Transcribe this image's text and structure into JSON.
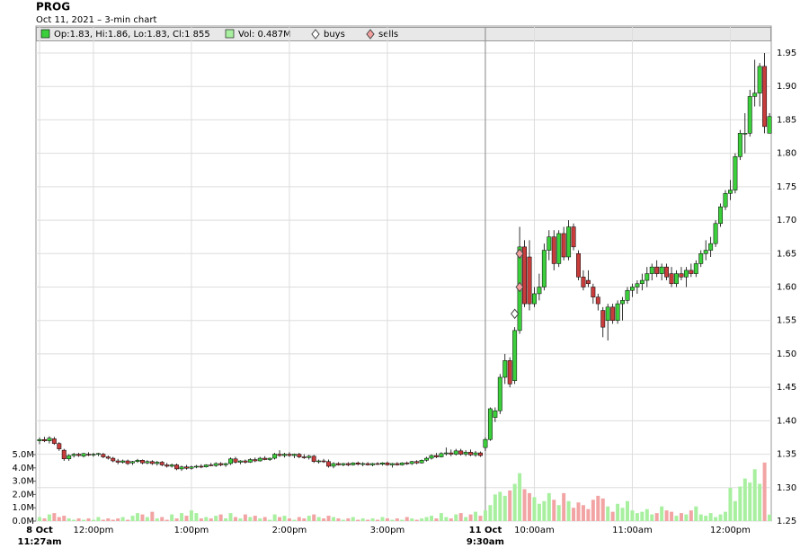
{
  "chart_data": {
    "type": "candlestick",
    "title": "PROG",
    "subtitle": "Oct 11, 2021 – 3-min chart",
    "legend": {
      "ohlc_text": "Op:1.83, Hi:1.86, Lo:1.83, Cl:1.855",
      "volume_text": "Vol: 0.487M",
      "buys": "buys",
      "sells": "sells"
    },
    "up_color": "#3ccf3c",
    "down_color": "#c83c3c",
    "volume_up_color": "#a8f0a0",
    "volume_down_color": "#f2a4a4",
    "grid": true,
    "categories": [
      "11:27am",
      null,
      null,
      null,
      null,
      null,
      null,
      null,
      null,
      null,
      null,
      "12:00pm",
      null,
      null,
      null,
      null,
      null,
      null,
      null,
      null,
      null,
      null,
      null,
      null,
      null,
      null,
      null,
      null,
      null,
      null,
      null,
      "1:00pm",
      null,
      null,
      null,
      null,
      null,
      null,
      null,
      null,
      null,
      null,
      null,
      null,
      null,
      null,
      null,
      null,
      null,
      null,
      null,
      "2:00pm",
      null,
      null,
      null,
      null,
      null,
      null,
      null,
      null,
      null,
      null,
      null,
      null,
      null,
      null,
      null,
      null,
      null,
      null,
      null,
      "3:00pm",
      null,
      null,
      null,
      null,
      null,
      null,
      null,
      null,
      null,
      null,
      null,
      null,
      null,
      null,
      null,
      null,
      null,
      null,
      null,
      "9:30am",
      null,
      null,
      null,
      null,
      null,
      null,
      null,
      null,
      null,
      "10:00am",
      null,
      null,
      null,
      null,
      null,
      null,
      null,
      null,
      null,
      null,
      null,
      null,
      null,
      null,
      null,
      null,
      null,
      null,
      null,
      "11:00am",
      null,
      null,
      null,
      null,
      null,
      null,
      null,
      null,
      null,
      null,
      null,
      null,
      null,
      null,
      null,
      null,
      null,
      null,
      null,
      "12:00pm",
      null,
      null,
      null,
      null,
      null,
      null,
      null,
      null
    ],
    "x_date_labels": [
      {
        "value": 0,
        "label": "8 Oct"
      },
      {
        "value": 91,
        "label": "11 Oct"
      }
    ],
    "ohlc": [
      [
        1.37,
        1.375,
        1.365,
        1.372
      ],
      [
        1.372,
        1.376,
        1.368,
        1.37
      ],
      [
        1.37,
        1.377,
        1.366,
        1.374
      ],
      [
        1.373,
        1.376,
        1.364,
        1.366
      ],
      [
        1.366,
        1.368,
        1.355,
        1.358
      ],
      [
        1.356,
        1.358,
        1.34,
        1.343
      ],
      [
        1.343,
        1.35,
        1.34,
        1.348
      ],
      [
        1.348,
        1.352,
        1.345,
        1.35
      ],
      [
        1.35,
        1.352,
        1.346,
        1.348
      ],
      [
        1.347,
        1.352,
        1.345,
        1.351
      ],
      [
        1.35,
        1.353,
        1.347,
        1.349
      ],
      [
        1.349,
        1.352,
        1.346,
        1.35
      ],
      [
        1.35,
        1.352,
        1.347,
        1.351
      ],
      [
        1.35,
        1.352,
        1.344,
        1.346
      ],
      [
        1.346,
        1.348,
        1.342,
        1.344
      ],
      [
        1.344,
        1.346,
        1.338,
        1.34
      ],
      [
        1.34,
        1.343,
        1.335,
        1.338
      ],
      [
        1.338,
        1.342,
        1.336,
        1.34
      ],
      [
        1.34,
        1.342,
        1.334,
        1.336
      ],
      [
        1.337,
        1.34,
        1.334,
        1.339
      ],
      [
        1.339,
        1.343,
        1.337,
        1.341
      ],
      [
        1.341,
        1.342,
        1.335,
        1.337
      ],
      [
        1.337,
        1.341,
        1.335,
        1.339
      ],
      [
        1.339,
        1.341,
        1.334,
        1.336
      ],
      [
        1.336,
        1.34,
        1.333,
        1.338
      ],
      [
        1.338,
        1.34,
        1.332,
        1.334
      ],
      [
        1.334,
        1.337,
        1.33,
        1.332
      ],
      [
        1.332,
        1.336,
        1.33,
        1.334
      ],
      [
        1.334,
        1.336,
        1.326,
        1.328
      ],
      [
        1.328,
        1.333,
        1.325,
        1.331
      ],
      [
        1.331,
        1.334,
        1.327,
        1.329
      ],
      [
        1.329,
        1.333,
        1.327,
        1.331
      ],
      [
        1.331,
        1.334,
        1.329,
        1.332
      ],
      [
        1.332,
        1.335,
        1.329,
        1.331
      ],
      [
        1.331,
        1.335,
        1.33,
        1.334
      ],
      [
        1.334,
        1.337,
        1.332,
        1.333
      ],
      [
        1.333,
        1.338,
        1.331,
        1.336
      ],
      [
        1.336,
        1.338,
        1.332,
        1.334
      ],
      [
        1.334,
        1.337,
        1.331,
        1.336
      ],
      [
        1.336,
        1.345,
        1.334,
        1.343
      ],
      [
        1.343,
        1.346,
        1.336,
        1.338
      ],
      [
        1.338,
        1.341,
        1.335,
        1.34
      ],
      [
        1.34,
        1.342,
        1.336,
        1.338
      ],
      [
        1.338,
        1.344,
        1.337,
        1.342
      ],
      [
        1.342,
        1.345,
        1.338,
        1.34
      ],
      [
        1.34,
        1.346,
        1.339,
        1.344
      ],
      [
        1.344,
        1.347,
        1.341,
        1.342
      ],
      [
        1.342,
        1.345,
        1.34,
        1.344
      ],
      [
        1.344,
        1.352,
        1.342,
        1.35
      ],
      [
        1.35,
        1.356,
        1.346,
        1.348
      ],
      [
        1.348,
        1.352,
        1.345,
        1.35
      ],
      [
        1.35,
        1.353,
        1.346,
        1.348
      ],
      [
        1.348,
        1.351,
        1.344,
        1.35
      ],
      [
        1.35,
        1.352,
        1.344,
        1.346
      ],
      [
        1.346,
        1.35,
        1.343,
        1.345
      ],
      [
        1.345,
        1.349,
        1.342,
        1.347
      ],
      [
        1.347,
        1.349,
        1.337,
        1.339
      ],
      [
        1.339,
        1.342,
        1.336,
        1.34
      ],
      [
        1.34,
        1.343,
        1.337,
        1.339
      ],
      [
        1.339,
        1.342,
        1.33,
        1.332
      ],
      [
        1.332,
        1.338,
        1.329,
        1.336
      ],
      [
        1.336,
        1.338,
        1.333,
        1.334
      ],
      [
        1.334,
        1.337,
        1.332,
        1.336
      ],
      [
        1.336,
        1.338,
        1.332,
        1.334
      ],
      [
        1.334,
        1.338,
        1.333,
        1.337
      ],
      [
        1.337,
        1.339,
        1.333,
        1.335
      ],
      [
        1.335,
        1.338,
        1.332,
        1.336
      ],
      [
        1.336,
        1.338,
        1.333,
        1.334
      ],
      [
        1.334,
        1.337,
        1.332,
        1.336
      ],
      [
        1.336,
        1.338,
        1.334,
        1.335
      ],
      [
        1.335,
        1.338,
        1.333,
        1.337
      ],
      [
        1.337,
        1.339,
        1.333,
        1.334
      ],
      [
        1.334,
        1.337,
        1.33,
        1.336
      ],
      [
        1.336,
        1.338,
        1.333,
        1.334
      ],
      [
        1.334,
        1.338,
        1.333,
        1.337
      ],
      [
        1.337,
        1.339,
        1.334,
        1.336
      ],
      [
        1.336,
        1.34,
        1.334,
        1.339
      ],
      [
        1.339,
        1.341,
        1.335,
        1.337
      ],
      [
        1.337,
        1.342,
        1.336,
        1.341
      ],
      [
        1.341,
        1.346,
        1.339,
        1.344
      ],
      [
        1.344,
        1.35,
        1.342,
        1.348
      ],
      [
        1.348,
        1.352,
        1.344,
        1.346
      ],
      [
        1.346,
        1.353,
        1.345,
        1.351
      ],
      [
        1.351,
        1.36,
        1.348,
        1.352
      ],
      [
        1.352,
        1.357,
        1.347,
        1.35
      ],
      [
        1.35,
        1.358,
        1.348,
        1.355
      ],
      [
        1.355,
        1.358,
        1.348,
        1.35
      ],
      [
        1.35,
        1.356,
        1.347,
        1.353
      ],
      [
        1.353,
        1.357,
        1.347,
        1.349
      ],
      [
        1.349,
        1.355,
        1.346,
        1.352
      ],
      [
        1.352,
        1.354,
        1.346,
        1.348
      ],
      [
        1.36,
        1.375,
        1.355,
        1.372
      ],
      [
        1.372,
        1.42,
        1.37,
        1.418
      ],
      [
        1.405,
        1.42,
        1.398,
        1.415
      ],
      [
        1.415,
        1.47,
        1.41,
        1.465
      ],
      [
        1.465,
        1.5,
        1.455,
        1.49
      ],
      [
        1.49,
        1.495,
        1.45,
        1.455
      ],
      [
        1.46,
        1.54,
        1.455,
        1.535
      ],
      [
        1.535,
        1.69,
        1.53,
        1.66
      ],
      [
        1.66,
        1.67,
        1.57,
        1.575
      ],
      [
        1.645,
        1.67,
        1.565,
        1.575
      ],
      [
        1.575,
        1.6,
        1.57,
        1.59
      ],
      [
        1.59,
        1.62,
        1.58,
        1.6
      ],
      [
        1.6,
        1.665,
        1.595,
        1.655
      ],
      [
        1.655,
        1.685,
        1.64,
        1.675
      ],
      [
        1.675,
        1.685,
        1.625,
        1.635
      ],
      [
        1.635,
        1.685,
        1.63,
        1.68
      ],
      [
        1.68,
        1.69,
        1.64,
        1.645
      ],
      [
        1.645,
        1.7,
        1.64,
        1.69
      ],
      [
        1.69,
        1.695,
        1.655,
        1.66
      ],
      [
        1.65,
        1.655,
        1.61,
        1.615
      ],
      [
        1.615,
        1.625,
        1.595,
        1.6
      ],
      [
        1.61,
        1.625,
        1.6,
        1.605
      ],
      [
        1.6,
        1.605,
        1.575,
        1.585
      ],
      [
        1.585,
        1.59,
        1.565,
        1.575
      ],
      [
        1.565,
        1.57,
        1.525,
        1.54
      ],
      [
        1.55,
        1.575,
        1.52,
        1.57
      ],
      [
        1.57,
        1.575,
        1.545,
        1.55
      ],
      [
        1.55,
        1.58,
        1.545,
        1.575
      ],
      [
        1.575,
        1.585,
        1.55,
        1.58
      ],
      [
        1.58,
        1.6,
        1.575,
        1.595
      ],
      [
        1.595,
        1.605,
        1.585,
        1.6
      ],
      [
        1.6,
        1.61,
        1.59,
        1.605
      ],
      [
        1.605,
        1.62,
        1.595,
        1.61
      ],
      [
        1.61,
        1.63,
        1.6,
        1.62
      ],
      [
        1.62,
        1.635,
        1.61,
        1.63
      ],
      [
        1.63,
        1.64,
        1.615,
        1.62
      ],
      [
        1.62,
        1.635,
        1.61,
        1.63
      ],
      [
        1.63,
        1.635,
        1.61,
        1.615
      ],
      [
        1.62,
        1.63,
        1.6,
        1.605
      ],
      [
        1.605,
        1.625,
        1.6,
        1.62
      ],
      [
        1.62,
        1.63,
        1.61,
        1.615
      ],
      [
        1.615,
        1.63,
        1.6,
        1.625
      ],
      [
        1.625,
        1.635,
        1.615,
        1.62
      ],
      [
        1.62,
        1.64,
        1.615,
        1.635
      ],
      [
        1.635,
        1.655,
        1.63,
        1.65
      ],
      [
        1.65,
        1.67,
        1.64,
        1.655
      ],
      [
        1.655,
        1.675,
        1.645,
        1.665
      ],
      [
        1.665,
        1.7,
        1.66,
        1.695
      ],
      [
        1.695,
        1.725,
        1.69,
        1.72
      ],
      [
        1.72,
        1.745,
        1.715,
        1.74
      ],
      [
        1.74,
        1.76,
        1.73,
        1.745
      ],
      [
        1.745,
        1.8,
        1.74,
        1.795
      ],
      [
        1.795,
        1.835,
        1.79,
        1.83
      ],
      [
        1.83,
        1.86,
        1.8,
        1.83
      ],
      [
        1.83,
        1.895,
        1.825,
        1.885
      ],
      [
        1.885,
        1.94,
        1.87,
        1.89
      ],
      [
        1.89,
        1.935,
        1.87,
        1.93
      ],
      [
        1.93,
        1.95,
        1.83,
        1.84
      ],
      [
        1.83,
        1.86,
        1.83,
        1.855
      ]
    ],
    "volume": [
      0.3,
      0.2,
      0.5,
      0.6,
      0.3,
      0.4,
      0.2,
      0.1,
      0.2,
      0.1,
      0.2,
      0.1,
      0.3,
      0.1,
      0.2,
      0.1,
      0.2,
      0.3,
      0.1,
      0.4,
      0.6,
      0.5,
      0.3,
      0.7,
      0.2,
      0.3,
      0.1,
      0.5,
      0.2,
      0.6,
      0.4,
      0.8,
      0.6,
      0.2,
      0.3,
      0.2,
      0.4,
      0.5,
      0.2,
      0.6,
      0.3,
      0.2,
      0.5,
      0.3,
      0.4,
      0.2,
      0.3,
      0.1,
      0.5,
      0.3,
      0.4,
      0.2,
      0.1,
      0.3,
      0.2,
      0.4,
      0.5,
      0.3,
      0.2,
      0.4,
      0.3,
      0.2,
      0.1,
      0.2,
      0.3,
      0.1,
      0.2,
      0.1,
      0.2,
      0.1,
      0.3,
      0.2,
      0.1,
      0.2,
      0.1,
      0.3,
      0.2,
      0.1,
      0.2,
      0.3,
      0.4,
      0.2,
      0.6,
      0.3,
      0.2,
      0.5,
      0.6,
      0.3,
      0.5,
      0.7,
      0.4,
      0.8,
      1.2,
      2.0,
      2.2,
      1.9,
      2.3,
      2.8,
      3.6,
      2.4,
      2.1,
      1.8,
      1.3,
      1.5,
      2.1,
      1.6,
      1.2,
      2.1,
      1.5,
      1.0,
      1.4,
      1.2,
      0.9,
      1.6,
      1.9,
      1.7,
      1.1,
      0.7,
      1.3,
      1.0,
      1.5,
      0.8,
      0.6,
      0.7,
      0.9,
      0.5,
      0.6,
      1.1,
      0.8,
      0.7,
      0.4,
      0.6,
      0.5,
      0.8,
      1.1,
      0.5,
      0.4,
      0.6,
      0.3,
      0.5,
      0.7,
      2.5,
      1.5,
      2.6,
      3.2,
      2.9,
      3.9,
      2.8,
      4.4,
      0.487
    ],
    "buys": {
      "x": [
        97
      ],
      "values": [
        1.56
      ],
      "color": "#ffffff"
    },
    "sells": {
      "x": [
        98,
        98
      ],
      "values": [
        1.6,
        1.65
      ],
      "color": "#f4a0a0"
    },
    "ylim": [
      1.25,
      1.95
    ],
    "yticks": [
      1.25,
      {
        "value": 1.3,
        "label": "1.30"
      },
      1.35,
      {
        "value": 1.4,
        "label": "1.40"
      },
      1.45,
      {
        "value": 1.5,
        "label": "1.50"
      },
      1.55,
      {
        "value": 1.6,
        "label": "1.60"
      },
      1.65,
      {
        "value": 1.7,
        "label": "1.70"
      },
      1.75,
      {
        "value": 1.8,
        "label": "1.80"
      },
      1.85,
      {
        "value": 1.9,
        "label": "1.90"
      },
      1.95
    ],
    "y2lim": [
      0,
      35.2
    ],
    "y2ticks": [
      {
        "value": 0,
        "label": "0.0M"
      },
      {
        "value": 1,
        "label": "1.0M"
      },
      {
        "value": 2,
        "label": "2.0M"
      },
      {
        "value": 3,
        "label": "3.0M"
      },
      {
        "value": 4,
        "label": "4.0M"
      },
      {
        "value": 5,
        "label": "5.0M"
      }
    ]
  }
}
